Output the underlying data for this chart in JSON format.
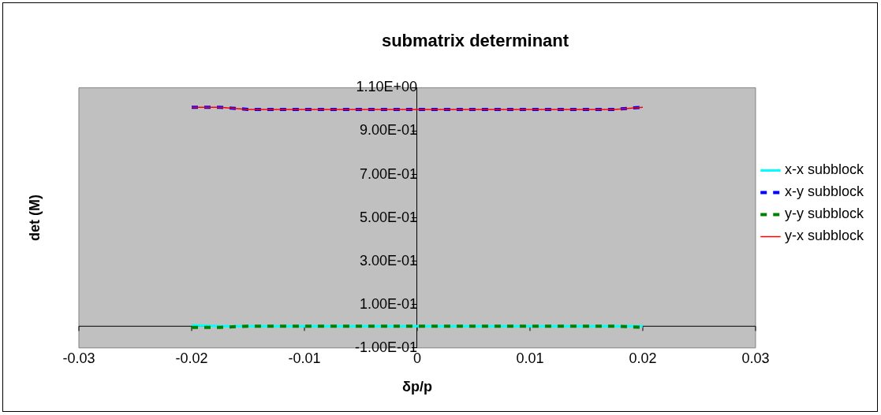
{
  "chart_data": {
    "type": "line",
    "title": "submatrix determinant",
    "xlabel": "δp/p",
    "ylabel": "det (M)",
    "x": [
      -0.02,
      -0.0175,
      -0.015,
      -0.0125,
      -0.01,
      -0.0075,
      -0.005,
      -0.0025,
      0,
      0.0025,
      0.005,
      0.0075,
      0.01,
      0.0125,
      0.015,
      0.0175,
      0.02
    ],
    "series": [
      {
        "name": "x-x subblock",
        "color": "#00ffff",
        "line_style": "solid",
        "values": [
          0.005,
          0,
          0,
          0,
          0,
          0,
          0,
          0,
          0,
          0,
          0,
          0,
          0,
          0,
          0,
          0,
          0
        ]
      },
      {
        "name": "x-y subblock",
        "color": "#0000ff",
        "line_style": "dashed",
        "values": [
          1.01,
          1.01,
          1,
          1,
          1,
          1,
          1,
          1,
          1,
          1,
          1,
          1,
          1,
          1,
          1,
          1,
          1.01
        ]
      },
      {
        "name": "y-y subblock",
        "color": "#008000",
        "line_style": "dashed",
        "values": [
          -0.005,
          -0.005,
          0,
          0,
          0,
          0,
          0,
          0,
          0,
          0,
          0,
          0,
          0,
          0,
          0,
          0,
          -0.005
        ]
      },
      {
        "name": "y-x subblock",
        "color": "#ff0000",
        "line_style": "solid",
        "values": [
          1.01,
          1.01,
          1,
          1,
          1,
          1,
          1,
          1,
          1,
          1,
          1,
          1,
          1,
          1,
          1,
          1,
          1.01
        ]
      }
    ],
    "xlim": [
      -0.03,
      0.03
    ],
    "xticks": [
      -0.03,
      -0.02,
      -0.01,
      0,
      0.01,
      0.02,
      0.03
    ],
    "ylim": [
      -0.1,
      1.1
    ],
    "yticks": [
      {
        "value": -0.1,
        "label": "-1.00E-01"
      },
      {
        "value": 0.1,
        "label": "1.00E-01"
      },
      {
        "value": 0.3,
        "label": "3.00E-01"
      },
      {
        "value": 0.5,
        "label": "5.00E-01"
      },
      {
        "value": 0.7,
        "label": "7.00E-01"
      },
      {
        "value": 0.9,
        "label": "9.00E-01"
      },
      {
        "value": 1.1,
        "label": "1.10E+00"
      }
    ],
    "grid": false,
    "legend": "right",
    "marker": "none"
  }
}
